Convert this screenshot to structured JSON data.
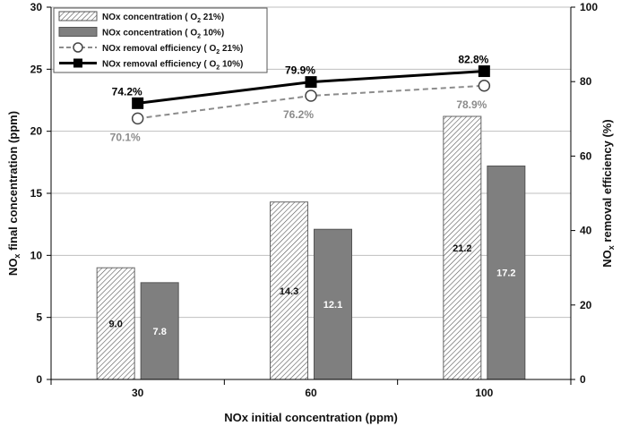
{
  "chart_data": {
    "type": "bar",
    "categories": [
      "30",
      "60",
      "100"
    ],
    "xlabel": "NOx initial concentration (ppm)",
    "ylabel_left": {
      "base": "NO",
      "sub": "x",
      "rest": " final concentration (ppm)"
    },
    "ylabel_right": {
      "base": "NO",
      "sub": "x",
      "rest": " removal efficiency (%)"
    },
    "ylim_left": [
      0,
      30
    ],
    "yticks_left": [
      0,
      5,
      10,
      15,
      20,
      25,
      30
    ],
    "ylim_right": [
      0,
      100
    ],
    "yticks_right": [
      0,
      20,
      40,
      60,
      80,
      100
    ],
    "grid": "horizontal",
    "legend_position": "top-left",
    "series": [
      {
        "name": "NOx concentration ( O2 21%)",
        "legend": {
          "pre": "NOx concentration ( O",
          "sub": "2",
          "post": " 21%)"
        },
        "kind": "bar",
        "axis": "left",
        "values": [
          9.0,
          14.3,
          21.2
        ],
        "labels": [
          "9.0",
          "14.3",
          "21.2"
        ],
        "style": "hatched",
        "label_color": "#111111"
      },
      {
        "name": "NOx concentration ( O2 10%)",
        "legend": {
          "pre": "NOx concentration ( O",
          "sub": "2",
          "post": " 10%)"
        },
        "kind": "bar",
        "axis": "left",
        "values": [
          7.8,
          12.1,
          17.2
        ],
        "labels": [
          "7.8",
          "12.1",
          "17.2"
        ],
        "style": "solid",
        "color": "#7f7f7f",
        "label_color": "#ffffff"
      },
      {
        "name": "NOx removal efficiency ( O2 21%)",
        "legend": {
          "pre": "NOx removal efficiency ( O",
          "sub": "2",
          "post": " 21%)"
        },
        "kind": "line",
        "axis": "right",
        "values": [
          70.1,
          76.2,
          78.9
        ],
        "labels": [
          "70.1%",
          "76.2%",
          "78.9%"
        ],
        "style": "dashed-open-circle",
        "color": "#8c8c8c",
        "label_color": "#8c8c8c",
        "label_placement": "below"
      },
      {
        "name": "NOx removal efficiency ( O2 10%)",
        "legend": {
          "pre": "NOx removal efficiency ( O",
          "sub": "2",
          "post": " 10%)"
        },
        "kind": "line",
        "axis": "right",
        "values": [
          74.2,
          79.9,
          82.8
        ],
        "labels": [
          "74.2%",
          "79.9%",
          "82.8%"
        ],
        "style": "solid-square",
        "color": "#000000",
        "label_color": "#000000",
        "label_placement": "above"
      }
    ]
  }
}
